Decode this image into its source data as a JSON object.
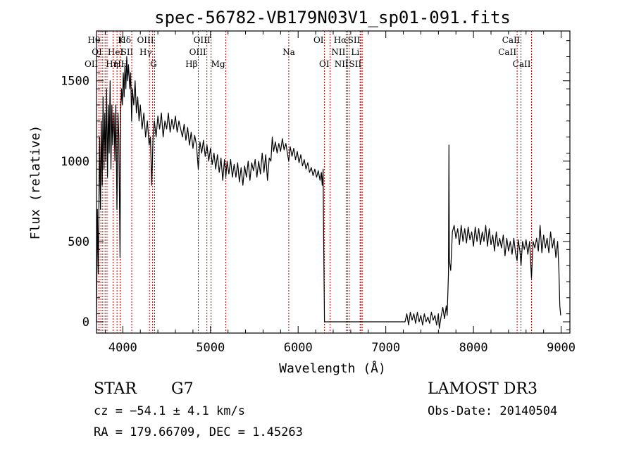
{
  "chart_data": {
    "type": "line",
    "title": "spec-56782-VB179N03V1_sp01-091.fits",
    "xlabel": "Wavelength (Å)",
    "ylabel": "Flux (relative)",
    "xlim": [
      3700,
      9100
    ],
    "ylim": [
      -70,
      1810
    ],
    "xticks": [
      4000,
      5000,
      6000,
      7000,
      8000,
      9000
    ],
    "yticks": [
      0,
      500,
      1000,
      1500
    ],
    "grid": false,
    "series": [
      {
        "points": [
          [
            3700,
            0
          ],
          [
            3710,
            700
          ],
          [
            3720,
            300
          ],
          [
            3735,
            1150
          ],
          [
            3745,
            700
          ],
          [
            3755,
            1250
          ],
          [
            3765,
            850
          ],
          [
            3775,
            1400
          ],
          [
            3785,
            950
          ],
          [
            3795,
            1300
          ],
          [
            3805,
            1000
          ],
          [
            3815,
            1450
          ],
          [
            3825,
            900
          ],
          [
            3835,
            1350
          ],
          [
            3845,
            1050
          ],
          [
            3855,
            1500
          ],
          [
            3865,
            950
          ],
          [
            3875,
            1350
          ],
          [
            3885,
            1100
          ],
          [
            3900,
            1300
          ],
          [
            3910,
            1000
          ],
          [
            3920,
            1350
          ],
          [
            3933,
            700
          ],
          [
            3945,
            1300
          ],
          [
            3955,
            1150
          ],
          [
            3968,
            400
          ],
          [
            3975,
            1300
          ],
          [
            3985,
            1450
          ],
          [
            3995,
            1350
          ],
          [
            4005,
            1550
          ],
          [
            4015,
            1400
          ],
          [
            4025,
            1600
          ],
          [
            4035,
            1450
          ],
          [
            4045,
            1650
          ],
          [
            4055,
            1500
          ],
          [
            4065,
            1600
          ],
          [
            4080,
            1450
          ],
          [
            4090,
            1550
          ],
          [
            4101,
            1250
          ],
          [
            4110,
            1450
          ],
          [
            4125,
            1350
          ],
          [
            4140,
            1500
          ],
          [
            4155,
            1300
          ],
          [
            4170,
            1400
          ],
          [
            4185,
            1250
          ],
          [
            4200,
            1350
          ],
          [
            4220,
            1200
          ],
          [
            4240,
            1300
          ],
          [
            4260,
            1150
          ],
          [
            4280,
            1250
          ],
          [
            4300,
            1100
          ],
          [
            4315,
            1150
          ],
          [
            4330,
            850
          ],
          [
            4345,
            1150
          ],
          [
            4360,
            1250
          ],
          [
            4380,
            1150
          ],
          [
            4400,
            1280
          ],
          [
            4420,
            1200
          ],
          [
            4440,
            1300
          ],
          [
            4460,
            1150
          ],
          [
            4480,
            1250
          ],
          [
            4500,
            1200
          ],
          [
            4520,
            1300
          ],
          [
            4540,
            1180
          ],
          [
            4560,
            1260
          ],
          [
            4580,
            1200
          ],
          [
            4600,
            1280
          ],
          [
            4620,
            1180
          ],
          [
            4640,
            1250
          ],
          [
            4660,
            1200
          ],
          [
            4680,
            1150
          ],
          [
            4700,
            1230
          ],
          [
            4720,
            1130
          ],
          [
            4740,
            1210
          ],
          [
            4760,
            1100
          ],
          [
            4780,
            1180
          ],
          [
            4800,
            1080
          ],
          [
            4820,
            1160
          ],
          [
            4840,
            1100
          ],
          [
            4861,
            950
          ],
          [
            4880,
            1120
          ],
          [
            4900,
            1050
          ],
          [
            4920,
            1130
          ],
          [
            4940,
            1030
          ],
          [
            4960,
            1100
          ],
          [
            4980,
            1000
          ],
          [
            5000,
            1080
          ],
          [
            5020,
            980
          ],
          [
            5040,
            1050
          ],
          [
            5060,
            950
          ],
          [
            5080,
            1040
          ],
          [
            5100,
            930
          ],
          [
            5120,
            1020
          ],
          [
            5140,
            880
          ],
          [
            5160,
            1010
          ],
          [
            5175,
            900
          ],
          [
            5190,
            1000
          ],
          [
            5210,
            920
          ],
          [
            5230,
            1010
          ],
          [
            5250,
            900
          ],
          [
            5270,
            980
          ],
          [
            5290,
            900
          ],
          [
            5310,
            990
          ],
          [
            5330,
            870
          ],
          [
            5350,
            960
          ],
          [
            5370,
            850
          ],
          [
            5390,
            970
          ],
          [
            5410,
            900
          ],
          [
            5430,
            1000
          ],
          [
            5450,
            880
          ],
          [
            5470,
            990
          ],
          [
            5490,
            940
          ],
          [
            5510,
            1010
          ],
          [
            5530,
            900
          ],
          [
            5550,
            1000
          ],
          [
            5570,
            920
          ],
          [
            5590,
            1050
          ],
          [
            5610,
            930
          ],
          [
            5630,
            1040
          ],
          [
            5650,
            880
          ],
          [
            5670,
            1020
          ],
          [
            5690,
            1000
          ],
          [
            5705,
            1150
          ],
          [
            5720,
            1060
          ],
          [
            5740,
            1120
          ],
          [
            5760,
            1050
          ],
          [
            5780,
            1110
          ],
          [
            5800,
            1060
          ],
          [
            5820,
            1140
          ],
          [
            5840,
            1070
          ],
          [
            5860,
            1110
          ],
          [
            5880,
            1040
          ],
          [
            5893,
            1000
          ],
          [
            5910,
            1090
          ],
          [
            5930,
            1030
          ],
          [
            5950,
            1080
          ],
          [
            5970,
            1010
          ],
          [
            5990,
            1060
          ],
          [
            6010,
            990
          ],
          [
            6030,
            1040
          ],
          [
            6050,
            970
          ],
          [
            6070,
            1010
          ],
          [
            6090,
            950
          ],
          [
            6110,
            990
          ],
          [
            6130,
            930
          ],
          [
            6150,
            960
          ],
          [
            6170,
            910
          ],
          [
            6190,
            950
          ],
          [
            6210,
            900
          ],
          [
            6230,
            940
          ],
          [
            6250,
            880
          ],
          [
            6265,
            930
          ],
          [
            6275,
            850
          ],
          [
            6285,
            950
          ],
          [
            6290,
            590
          ],
          [
            6300,
            0
          ],
          [
            6500,
            0
          ],
          [
            6800,
            0
          ],
          [
            7000,
            0
          ],
          [
            7220,
            0
          ],
          [
            7240,
            50
          ],
          [
            7260,
            -20
          ],
          [
            7280,
            60
          ],
          [
            7300,
            10
          ],
          [
            7320,
            50
          ],
          [
            7340,
            -10
          ],
          [
            7360,
            60
          ],
          [
            7380,
            0
          ],
          [
            7400,
            40
          ],
          [
            7420,
            -20
          ],
          [
            7440,
            50
          ],
          [
            7460,
            0
          ],
          [
            7480,
            30
          ],
          [
            7500,
            -10
          ],
          [
            7520,
            60
          ],
          [
            7540,
            10
          ],
          [
            7560,
            40
          ],
          [
            7580,
            -20
          ],
          [
            7600,
            50
          ],
          [
            7610,
            -40
          ],
          [
            7630,
            30
          ],
          [
            7650,
            90
          ],
          [
            7670,
            20
          ],
          [
            7690,
            100
          ],
          [
            7700,
            40
          ],
          [
            7715,
            300
          ],
          [
            7720,
            1100
          ],
          [
            7725,
            380
          ],
          [
            7740,
            320
          ],
          [
            7760,
            560
          ],
          [
            7780,
            600
          ],
          [
            7800,
            520
          ],
          [
            7820,
            580
          ],
          [
            7840,
            480
          ],
          [
            7860,
            600
          ],
          [
            7880,
            500
          ],
          [
            7900,
            580
          ],
          [
            7920,
            490
          ],
          [
            7940,
            590
          ],
          [
            7960,
            510
          ],
          [
            7980,
            560
          ],
          [
            8000,
            470
          ],
          [
            8020,
            590
          ],
          [
            8040,
            500
          ],
          [
            8060,
            580
          ],
          [
            8080,
            480
          ],
          [
            8100,
            560
          ],
          [
            8120,
            500
          ],
          [
            8140,
            600
          ],
          [
            8160,
            470
          ],
          [
            8180,
            580
          ],
          [
            8200,
            480
          ],
          [
            8220,
            540
          ],
          [
            8240,
            440
          ],
          [
            8260,
            560
          ],
          [
            8280,
            470
          ],
          [
            8300,
            520
          ],
          [
            8320,
            460
          ],
          [
            8340,
            540
          ],
          [
            8360,
            410
          ],
          [
            8380,
            520
          ],
          [
            8400,
            440
          ],
          [
            8420,
            500
          ],
          [
            8440,
            420
          ],
          [
            8460,
            520
          ],
          [
            8480,
            430
          ],
          [
            8498,
            380
          ],
          [
            8510,
            510
          ],
          [
            8530,
            440
          ],
          [
            8542,
            350
          ],
          [
            8560,
            500
          ],
          [
            8580,
            450
          ],
          [
            8600,
            510
          ],
          [
            8620,
            420
          ],
          [
            8640,
            500
          ],
          [
            8662,
            270
          ],
          [
            8680,
            500
          ],
          [
            8700,
            460
          ],
          [
            8720,
            520
          ],
          [
            8740,
            440
          ],
          [
            8760,
            600
          ],
          [
            8780,
            430
          ],
          [
            8800,
            540
          ],
          [
            8820,
            460
          ],
          [
            8840,
            520
          ],
          [
            8860,
            430
          ],
          [
            8880,
            560
          ],
          [
            8900,
            460
          ],
          [
            8920,
            520
          ],
          [
            8940,
            400
          ],
          [
            8960,
            500
          ],
          [
            8975,
            320
          ],
          [
            8985,
            100
          ],
          [
            8995,
            40
          ]
        ]
      }
    ],
    "lines": [
      {
        "x": 3727,
        "label": "OII",
        "row": 3,
        "align": "end"
      },
      {
        "x": 3750,
        "label": "Hθ",
        "row": 1,
        "align": "end"
      },
      {
        "x": 3771,
        "label": "OI",
        "row": 2,
        "align": "end"
      },
      {
        "x": 3798,
        "label": "Hη",
        "row": 3,
        "align": "start"
      },
      {
        "x": 3820,
        "label": "HeI",
        "row": 2,
        "align": "start"
      },
      {
        "x": 3889,
        "label": "H",
        "row": 3,
        "align": "start"
      },
      {
        "x": 3934,
        "label": "K",
        "row": 1,
        "align": "start"
      },
      {
        "x": 3969,
        "label": "H",
        "row": 3,
        "align": "start"
      },
      {
        "x": 3970,
        "label": "SII",
        "row": 2,
        "align": "start"
      },
      {
        "x": 4102,
        "label": "Hδ",
        "row": 1,
        "align": "end"
      },
      {
        "x": 4304,
        "label": "G",
        "row": 3,
        "align": "start"
      },
      {
        "x": 4340,
        "label": "Hγ",
        "row": 2,
        "align": "end"
      },
      {
        "x": 4363,
        "label": "OIII",
        "row": 1,
        "align": "end"
      },
      {
        "x": 4861,
        "label": "Hβ",
        "row": 3,
        "align": "end"
      },
      {
        "x": 4959,
        "label": "OIII",
        "row": 2,
        "align": "end"
      },
      {
        "x": 5007,
        "label": "OIII",
        "row": 1,
        "align": "end"
      },
      {
        "x": 5175,
        "label": "Mg",
        "row": 3,
        "align": "end"
      },
      {
        "x": 5893,
        "label": "Na",
        "row": 2,
        "align": "middle"
      },
      {
        "x": 6300,
        "label": "OI",
        "row": 1,
        "align": "end"
      },
      {
        "x": 6364,
        "label": "OI",
        "row": 3,
        "align": "end"
      },
      {
        "x": 6548,
        "label": "NII",
        "row": 2,
        "align": "end"
      },
      {
        "x": 6563,
        "label": "Hα",
        "row": 1,
        "align": "end"
      },
      {
        "x": 6583,
        "label": "NII",
        "row": 3,
        "align": "end"
      },
      {
        "x": 6707,
        "label": "Li",
        "row": 2,
        "align": "end"
      },
      {
        "x": 6716,
        "label": "SII",
        "row": 1,
        "align": "end"
      },
      {
        "x": 6731,
        "label": "SII",
        "row": 3,
        "align": "end"
      },
      {
        "x": 8498,
        "label": "CaII",
        "row": 2,
        "align": "end"
      },
      {
        "x": 8542,
        "label": "CaII",
        "row": 1,
        "align": "end"
      },
      {
        "x": 8662,
        "label": "CaII",
        "row": 3,
        "align": "end"
      }
    ]
  },
  "info": {
    "object_class": "STAR",
    "subclass": "G7",
    "survey": "LAMOST DR3",
    "cz": "cz = −54.1 ± 4.1 km/s",
    "obs_date": "Obs-Date: 20140504",
    "coords": "RA = 179.66709, DEC =    1.45263"
  }
}
